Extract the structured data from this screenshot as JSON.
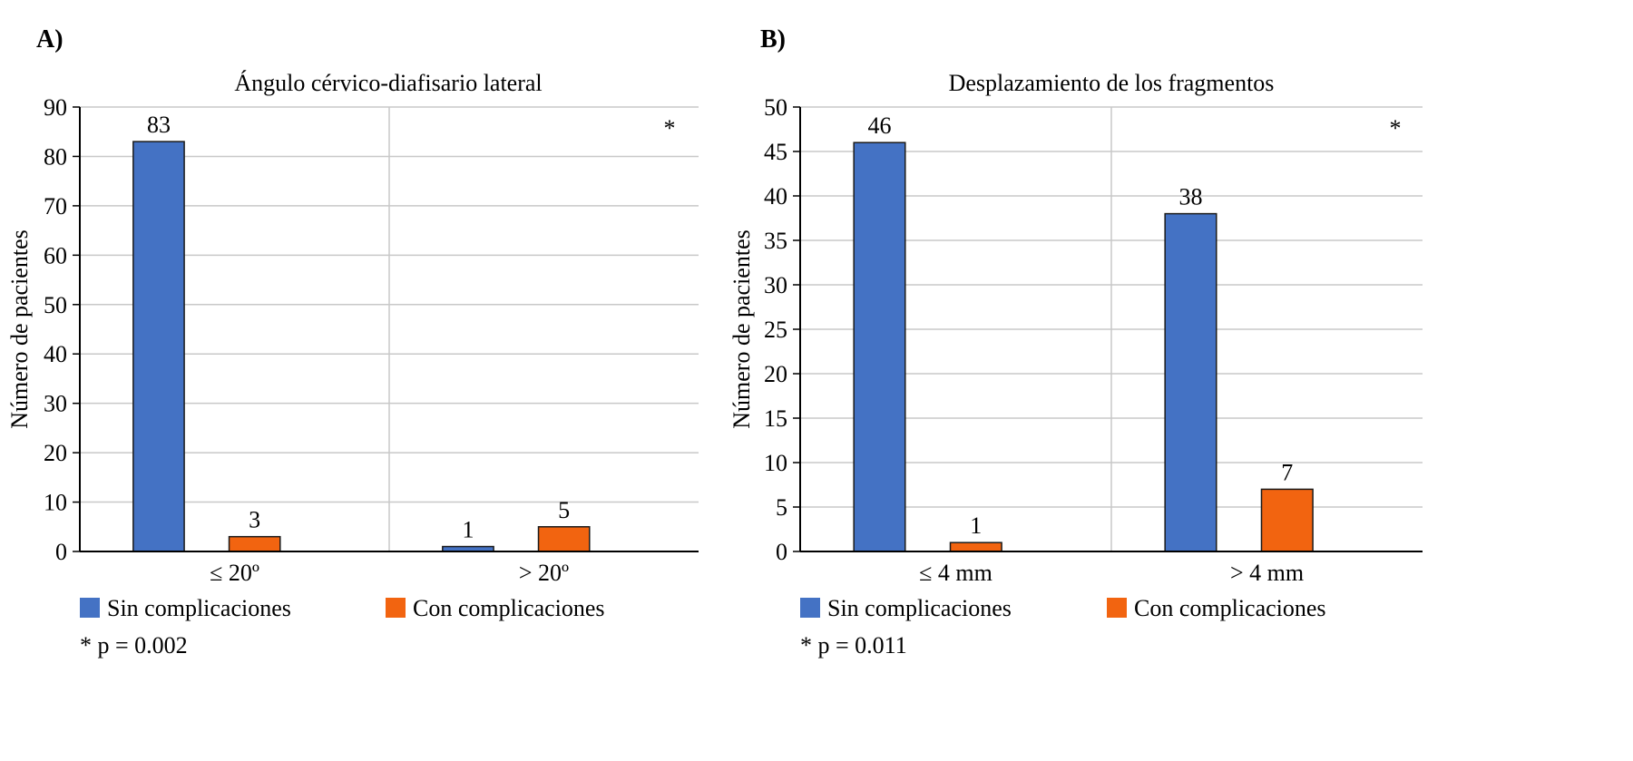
{
  "chart_data": [
    {
      "type": "bar",
      "panel_label": "A)",
      "title": "Ángulo cérvico-diafisario lateral",
      "xlabel": "",
      "ylabel": "Número de pacientes",
      "categories": [
        "≤ 20º",
        "> 20º"
      ],
      "series": [
        {
          "name": "Sin complicaciones",
          "color": "#4472C4",
          "values": [
            83,
            1
          ]
        },
        {
          "name": "Con complicaciones",
          "color": "#F26410",
          "values": [
            3,
            5
          ]
        }
      ],
      "ylim": [
        0,
        90
      ],
      "yticks": [
        0,
        10,
        20,
        30,
        40,
        50,
        60,
        70,
        80,
        90
      ],
      "grid": true,
      "legend": "bottom",
      "annotation": "*",
      "footnote": "* p = 0.002"
    },
    {
      "type": "bar",
      "panel_label": "B)",
      "title": "Desplazamiento de los fragmentos",
      "xlabel": "",
      "ylabel": "Número de pacientes",
      "categories": [
        "≤ 4 mm",
        "> 4 mm"
      ],
      "series": [
        {
          "name": "Sin complicaciones",
          "color": "#4472C4",
          "values": [
            46,
            38
          ]
        },
        {
          "name": "Con complicaciones",
          "color": "#F26410",
          "values": [
            1,
            7
          ]
        }
      ],
      "ylim": [
        0,
        50
      ],
      "yticks": [
        0,
        5,
        10,
        15,
        20,
        25,
        30,
        35,
        40,
        45,
        50
      ],
      "grid": true,
      "legend": "bottom",
      "annotation": "*",
      "footnote": "* p = 0.011"
    }
  ]
}
